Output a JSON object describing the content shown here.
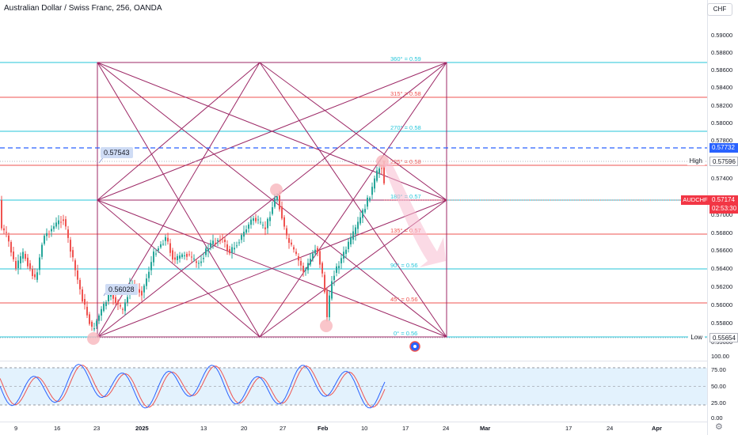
{
  "header": {
    "title": "Australian Dollar / Swiss Franc, 256, OANDA",
    "currency": "CHF"
  },
  "price_axis": {
    "ticks": [
      "0.59000",
      "0.58800",
      "0.58600",
      "0.58400",
      "0.58200",
      "0.58000",
      "0.57800",
      "0.57400",
      "0.57000",
      "0.56800",
      "0.56600",
      "0.56400",
      "0.56200",
      "0.56000",
      "0.55800",
      "0.55600"
    ],
    "price_tags": {
      "dashed_line": "0.57732",
      "high_label": "High",
      "high_value": "0.57596",
      "symbol": "AUDCHF",
      "current": "0.57174",
      "countdown": "02:53:30",
      "low_label": "Low",
      "low_value": "0.55654"
    }
  },
  "oscillator_axis": {
    "ticks": [
      "100.00",
      "75.00",
      "50.00",
      "25.00",
      "0.00"
    ]
  },
  "time_axis": {
    "ticks": [
      "9",
      "16",
      "23",
      "2025",
      "13",
      "20",
      "27",
      "Feb",
      "10",
      "17",
      "24",
      "Mar",
      "17",
      "24",
      "Apr"
    ]
  },
  "annotations": {
    "callout_upper": "0.57543",
    "callout_lower": "0.56028",
    "fib_levels": [
      "360° = 0.59",
      "315° = 0.58",
      "270° = 0.58",
      "225° = 0.58",
      "180° = 0.57",
      "135° = 0.57",
      "90° = 0.56",
      "45° = 0.56",
      "0° = 0.56"
    ]
  },
  "icons": {
    "gear": "settings-gear-icon",
    "flag": "event-flag-icon"
  },
  "colors": {
    "up": "#26a69a",
    "down": "#ef5350",
    "gann_teal": "#26c6da",
    "gann_red": "#ef5350",
    "gann_purple": "#9c2765",
    "dashed_line": "#2962ff",
    "oscillator_k": "#2962ff",
    "oscillator_d": "#ef5350",
    "band_fill": "#e3f2fd"
  }
}
